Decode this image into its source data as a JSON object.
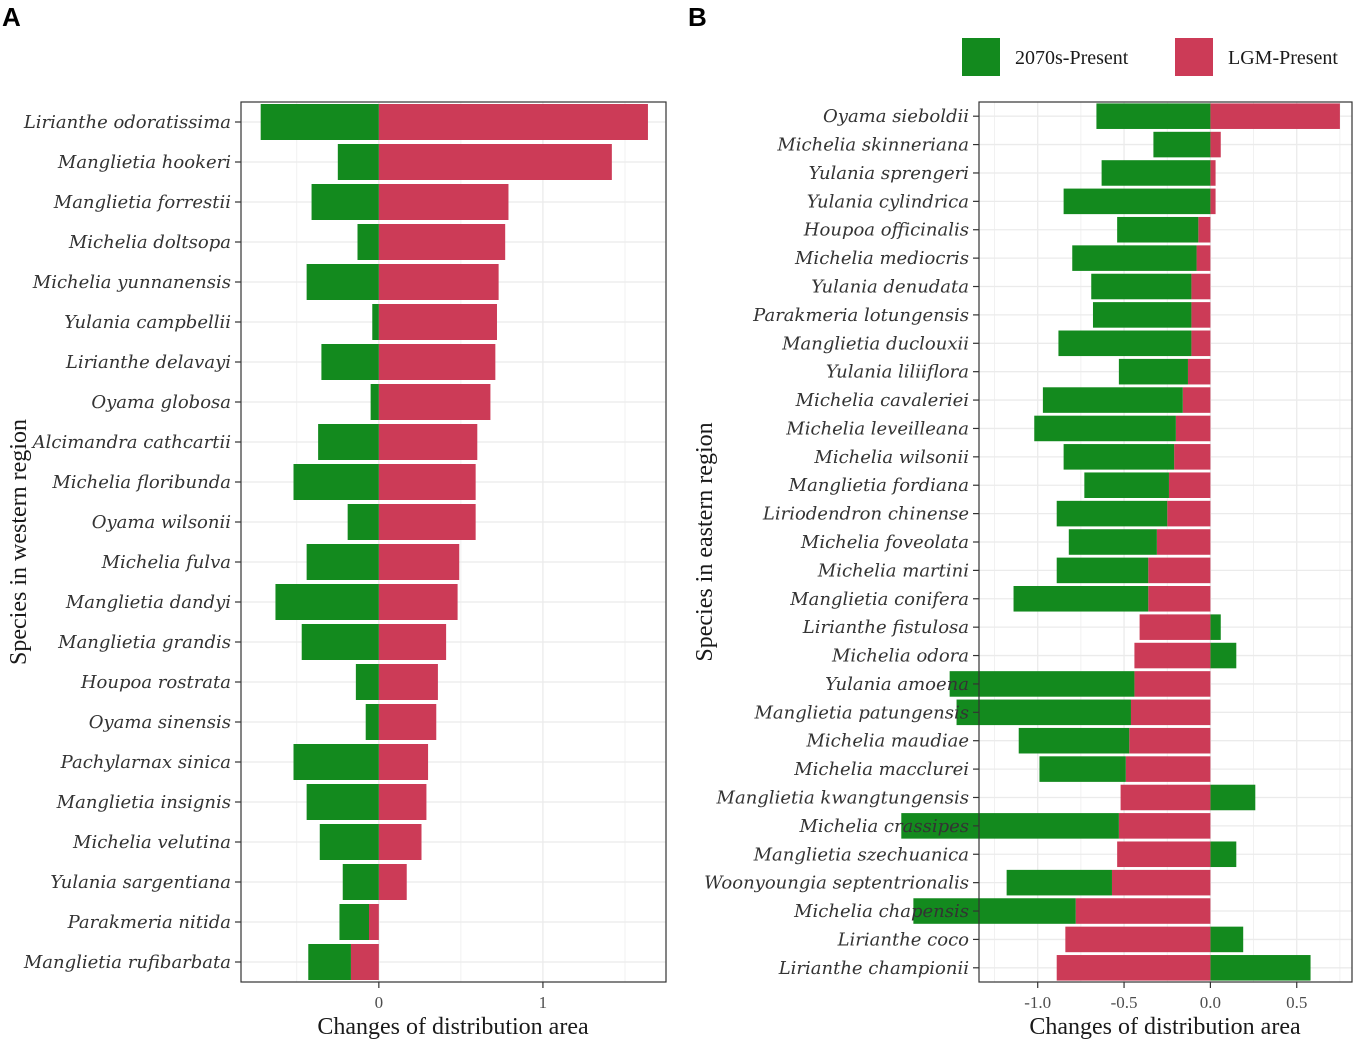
{
  "colors": {
    "future": "#138a1e",
    "lgm": "#cc3b57",
    "grid": "#ebebeb",
    "frame": "#333333"
  },
  "legend": {
    "future_label": "2070s-Present",
    "lgm_label": "LGM-Present"
  },
  "chart_data": [
    {
      "type": "bar",
      "orientation": "horizontal",
      "panel_label": "A",
      "title": "",
      "xlabel": "Changes of distribution area",
      "ylabel": "Species in western region",
      "xlim": [
        -0.84,
        1.75
      ],
      "xticks": [
        0,
        1
      ],
      "xtick_labels": [
        "0",
        "1"
      ],
      "grid": true,
      "categories": [
        "Lirianthe odoratissima",
        "Manglietia hookeri",
        "Manglietia forrestii",
        "Michelia doltsopa",
        "Michelia yunnanensis",
        "Yulania campbellii",
        "Lirianthe delavayi",
        "Oyama globosa",
        "Alcimandra cathcartii",
        "Michelia floribunda",
        "Oyama wilsonii",
        "Michelia fulva",
        "Manglietia dandyi",
        "Manglietia grandis",
        "Houpoa rostrata",
        "Oyama sinensis",
        "Pachylarnax sinica",
        "Manglietia insignis",
        "Michelia velutina",
        "Yulania sargentiana",
        "Parakmeria nitida",
        "Manglietia rufibarbata"
      ],
      "series": [
        {
          "name": "2070s-Present",
          "values": [
            -0.72,
            -0.25,
            -0.41,
            -0.13,
            -0.44,
            -0.04,
            -0.35,
            -0.05,
            -0.37,
            -0.52,
            -0.19,
            -0.44,
            -0.63,
            -0.47,
            -0.14,
            -0.08,
            -0.52,
            -0.44,
            -0.36,
            -0.22,
            -0.18,
            -0.26
          ]
        },
        {
          "name": "LGM-Present",
          "values": [
            1.64,
            1.42,
            0.79,
            0.77,
            0.73,
            0.72,
            0.71,
            0.68,
            0.6,
            0.59,
            0.59,
            0.49,
            0.48,
            0.41,
            0.36,
            0.35,
            0.3,
            0.29,
            0.26,
            0.17,
            -0.06,
            -0.17
          ]
        }
      ]
    },
    {
      "type": "bar",
      "orientation": "horizontal",
      "panel_label": "B",
      "title": "",
      "xlabel": "Changes of distribution area",
      "ylabel": "Species in eastern region",
      "xlim": [
        -1.34,
        0.82
      ],
      "xticks": [
        -1.0,
        -0.5,
        0.0,
        0.5
      ],
      "xtick_labels": [
        "-1.0",
        "-0.5",
        "0.0",
        "0.5"
      ],
      "grid": true,
      "categories": [
        "Oyama sieboldii",
        "Michelia skinneriana",
        "Yulania sprengeri",
        "Yulania cylindrica",
        "Houpoa officinalis",
        "Michelia mediocris",
        "Yulania denudata",
        "Parakmeria lotungensis",
        "Manglietia duclouxii",
        "Yulania liliiflora",
        "Michelia cavaleriei",
        "Michelia leveilleana",
        "Michelia wilsonii",
        "Manglietia fordiana",
        "Liriodendron chinense",
        "Michelia foveolata",
        "Michelia martini",
        "Manglietia conifera",
        "Lirianthe fistulosa",
        "Michelia odora",
        "Yulania amoena",
        "Manglietia patungensis",
        "Michelia maudiae",
        "Michelia macclurei",
        "Manglietia kwangtungensis",
        "Michelia crassipes",
        "Manglietia szechuanica",
        "Woonyoungia septentrionalis",
        "Michelia chapensis",
        "Lirianthe coco",
        "Lirianthe championii"
      ],
      "series": [
        {
          "name": "2070s-Present",
          "values": [
            -0.66,
            -0.33,
            -0.63,
            -0.85,
            -0.47,
            -0.72,
            -0.58,
            -0.57,
            -0.77,
            -0.4,
            -0.81,
            -0.82,
            -0.64,
            -0.49,
            -0.64,
            -0.51,
            -0.53,
            -0.78,
            0.06,
            0.15,
            -1.07,
            -1.01,
            -0.64,
            -0.5,
            0.26,
            -1.26,
            0.15,
            -0.61,
            -0.94,
            0.19,
            0.58
          ]
        },
        {
          "name": "LGM-Present",
          "values": [
            0.75,
            0.06,
            0.03,
            0.03,
            -0.07,
            -0.08,
            -0.11,
            -0.11,
            -0.11,
            -0.13,
            -0.16,
            -0.2,
            -0.21,
            -0.24,
            -0.25,
            -0.31,
            -0.36,
            -0.36,
            -0.41,
            -0.44,
            -0.44,
            -0.46,
            -0.47,
            -0.49,
            -0.52,
            -0.53,
            -0.54,
            -0.57,
            -0.78,
            -0.84,
            -0.89
          ]
        }
      ]
    }
  ]
}
